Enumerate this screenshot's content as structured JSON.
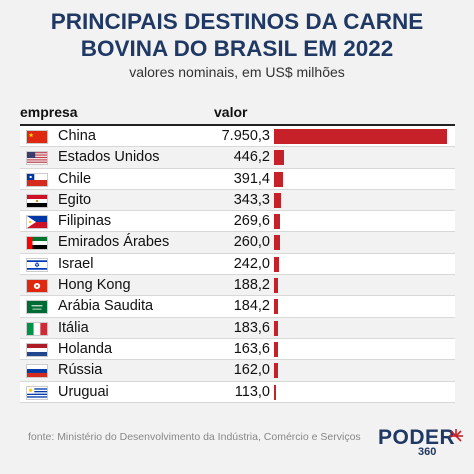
{
  "title_line1": "PRINCIPAIS DESTINOS DA CARNE",
  "title_line2": "BOVINA DO BRASIL EM 2022",
  "subtitle": "valores nominais, em US$ milhões",
  "header": {
    "empresa": "empresa",
    "valor": "valor"
  },
  "source": "fonte: Ministério do Desenvolvimento da Indústria, Comércio e Serviços",
  "logo": {
    "word": "PODER",
    "number": "360"
  },
  "colors": {
    "bar": "#c62028",
    "title": "#1f3864"
  },
  "chart_data": {
    "type": "bar",
    "orientation": "horizontal",
    "categories": [
      "China",
      "Estados Unidos",
      "Chile",
      "Egito",
      "Filipinas",
      "Emirados Árabes",
      "Israel",
      "Hong Kong",
      "Arábia Saudita",
      "Itália",
      "Holanda",
      "Rússia",
      "Uruguai"
    ],
    "value_labels": [
      "7.950,3",
      "446,2",
      "391,4",
      "343,3",
      "269,6",
      "260,0",
      "242,0",
      "188,2",
      "184,2",
      "183,6",
      "163,6",
      "162,0",
      "113,0"
    ],
    "values": [
      7950.3,
      446.2,
      391.4,
      343.3,
      269.6,
      260.0,
      242.0,
      188.2,
      184.2,
      183.6,
      163.6,
      162.0,
      113.0
    ],
    "flags": [
      "china-flag-icon",
      "usa-flag-icon",
      "chile-flag-icon",
      "egypt-flag-icon",
      "philippines-flag-icon",
      "uae-flag-icon",
      "israel-flag-icon",
      "hongkong-flag-icon",
      "saudi-flag-icon",
      "italy-flag-icon",
      "netherlands-flag-icon",
      "russia-flag-icon",
      "uruguay-flag-icon"
    ],
    "xlim": [
      0,
      7950.3
    ],
    "grid": false,
    "legend": "none"
  }
}
